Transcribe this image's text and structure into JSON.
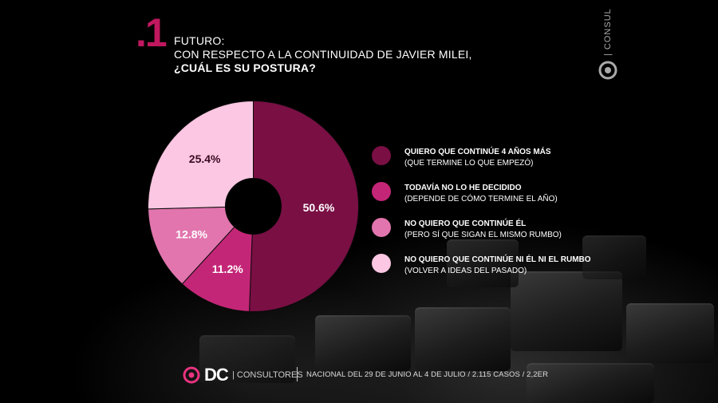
{
  "question": {
    "number": ".1",
    "line1": "FUTURO:",
    "line2": "CON RESPECTO A LA CONTINUIDAD DE JAVIER MILEI,",
    "line3": "¿CUÁL ES SU POSTURA?"
  },
  "brand": {
    "side_text": "| CONSUL",
    "footer_logo": "DC",
    "footer_consultores": "| CONSULTORES",
    "footer_info": "NACIONAL DEL 29 DE JUNIO AL 4 DE JULIO / 2.115 CASOS / 2,2ER"
  },
  "chart_data": {
    "type": "pie",
    "style": "donut",
    "slices": [
      {
        "value": 50.6,
        "label": "50.6%",
        "color": "#7a0f44"
      },
      {
        "value": 11.2,
        "label": "11.2%",
        "color": "#c42677"
      },
      {
        "value": 12.8,
        "label": "12.8%",
        "color": "#e275ae"
      },
      {
        "value": 25.4,
        "label": "25.4%",
        "color": "#fbc7e2"
      }
    ],
    "legend": [
      {
        "line1": "QUIERO QUE CONTINÚE 4 AÑOS MÁS",
        "line2": "(QUE TERMINE LO QUE EMPEZÓ)",
        "color": "#7a0f44"
      },
      {
        "line1": "TODAVÍA NO LO HE DECIDIDO",
        "line2": "(DEPENDE DE CÓMO TERMINE EL AÑO)",
        "color": "#c42677"
      },
      {
        "line1": "NO QUIERO QUE CONTINÚE ÉL",
        "line2": "(PERO SÍ QUE SIGAN EL MISMO RUMBO)",
        "color": "#e275ae"
      },
      {
        "line1": "NO QUIERO QUE CONTINÚE NI ÉL NI EL RUMBO",
        "line2": " (VOLVER A IDEAS DEL PASADO)",
        "color": "#fbc7e2"
      }
    ],
    "legend_position": "right"
  }
}
